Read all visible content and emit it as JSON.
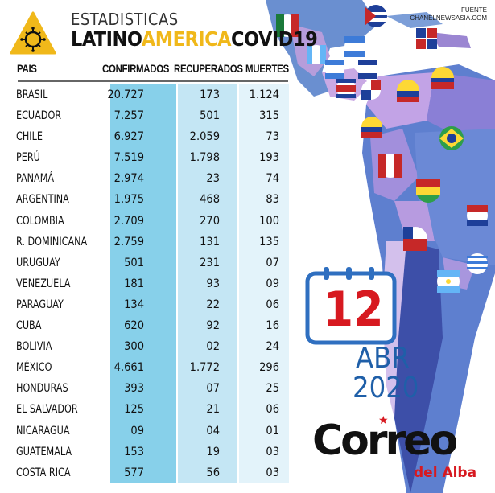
{
  "header": {
    "title_line1": "ESTADISTICAS",
    "title_line2_a": "LATINO",
    "title_line2_b": "AMERICA",
    "title_line2_c": "COVID19",
    "source_label": "FUENTE",
    "source": "CHANELNEWSASIA.COM"
  },
  "columns": {
    "pais": "PAIS",
    "confirmados": "CONFIRMADOS",
    "recuperados": "RECUPERADOS",
    "muertes": "MUERTES"
  },
  "rows": [
    {
      "pais": "BRASIL",
      "confirmados": "20.727",
      "recuperados": "173",
      "muertes": "1.124"
    },
    {
      "pais": "ECUADOR",
      "confirmados": "7.257",
      "recuperados": "501",
      "muertes": "315"
    },
    {
      "pais": "CHILE",
      "confirmados": "6.927",
      "recuperados": "2.059",
      "muertes": "73"
    },
    {
      "pais": "PERÚ",
      "confirmados": "7.519",
      "recuperados": "1.798",
      "muertes": "193"
    },
    {
      "pais": "PANAMÁ",
      "confirmados": "2.974",
      "recuperados": "23",
      "muertes": "74"
    },
    {
      "pais": "ARGENTINA",
      "confirmados": "1.975",
      "recuperados": "468",
      "muertes": "83"
    },
    {
      "pais": "COLOMBIA",
      "confirmados": "2.709",
      "recuperados": "270",
      "muertes": "100"
    },
    {
      "pais": "R. DOMINICANA",
      "confirmados": "2.759",
      "recuperados": "131",
      "muertes": "135"
    },
    {
      "pais": "URUGUAY",
      "confirmados": "501",
      "recuperados": "231",
      "muertes": "07"
    },
    {
      "pais": "VENEZUELA",
      "confirmados": "181",
      "recuperados": "93",
      "muertes": "09"
    },
    {
      "pais": "PARAGUAY",
      "confirmados": "134",
      "recuperados": "22",
      "muertes": "06"
    },
    {
      "pais": "CUBA",
      "confirmados": "620",
      "recuperados": "92",
      "muertes": "16"
    },
    {
      "pais": "BOLIVIA",
      "confirmados": "300",
      "recuperados": "02",
      "muertes": "24"
    },
    {
      "pais": "MÉXICO",
      "confirmados": "4.661",
      "recuperados": "1.772",
      "muertes": "296"
    },
    {
      "pais": "HONDURAS",
      "confirmados": "393",
      "recuperados": "07",
      "muertes": "25"
    },
    {
      "pais": "EL SALVADOR",
      "confirmados": "125",
      "recuperados": "21",
      "muertes": "06"
    },
    {
      "pais": "NICARAGUA",
      "confirmados": "09",
      "recuperados": "04",
      "muertes": "01"
    },
    {
      "pais": "GUATEMALA",
      "confirmados": "153",
      "recuperados": "19",
      "muertes": "03"
    },
    {
      "pais": "COSTA RICA",
      "confirmados": "577",
      "recuperados": "56",
      "muertes": "03"
    }
  ],
  "date": {
    "day": "12",
    "month": "ABR",
    "year": "2020"
  },
  "brand": {
    "name": "Correo",
    "sub": "del Alba"
  },
  "icons": {
    "logo": "virus-icon",
    "calendar": "calendar-icon"
  },
  "colors": {
    "confirmados_bg": "#87d0ea",
    "recuperados_bg": "#c4e6f4",
    "muertes_bg": "#e3f3fa",
    "accent_yellow": "#f0b81a",
    "accent_red": "#d71920",
    "accent_blue": "#1f5fa8"
  }
}
